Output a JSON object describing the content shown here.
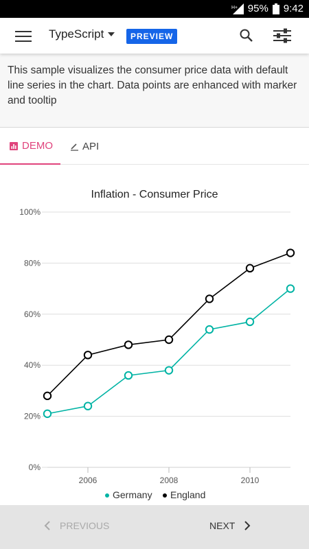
{
  "statusbar": {
    "battery": "95%",
    "time": "9:42"
  },
  "appbar": {
    "language": "TypeScript",
    "badge": "PREVIEW"
  },
  "description": "This sample visualizes the consumer price data with default line series in the chart. Data points are enhanced with marker and tooltip",
  "tabs": [
    {
      "label": "DEMO"
    },
    {
      "label": "API"
    }
  ],
  "footer": {
    "previous": "PREVIOUS",
    "next": "NEXT"
  },
  "colors": {
    "accent": "#e0437c",
    "badge": "#1565e8",
    "germany": "#00b3a4",
    "england": "#000000"
  },
  "chart_data": {
    "type": "line",
    "title": "Inflation - Consumer Price",
    "x": [
      2005,
      2006,
      2007,
      2008,
      2009,
      2010,
      2011
    ],
    "xticks": [
      "2006",
      "2008",
      "2010"
    ],
    "xlim": [
      2005,
      2011
    ],
    "ylim": [
      0,
      100
    ],
    "yticks": [
      "0%",
      "20%",
      "40%",
      "60%",
      "80%",
      "100%"
    ],
    "grid": true,
    "legend_position": "bottom",
    "series": [
      {
        "name": "Germany",
        "values": [
          21,
          24,
          36,
          38,
          54,
          57,
          70
        ]
      },
      {
        "name": "England",
        "values": [
          28,
          44,
          48,
          50,
          66,
          78,
          84
        ]
      }
    ]
  }
}
